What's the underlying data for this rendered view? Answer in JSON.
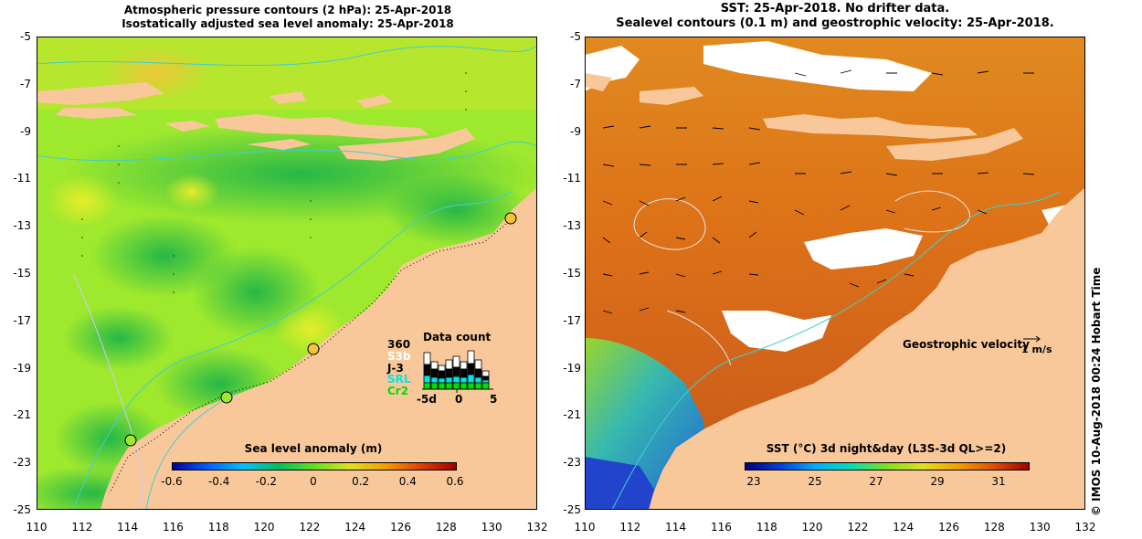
{
  "left_panel": {
    "title_line1": "Atmospheric pressure contours (2 hPa): 25-Apr-2018",
    "title_line2": "Isostatically adjusted sea level anomaly: 25-Apr-2018",
    "colorbar": {
      "title": "Sea level anomaly (m)",
      "ticks": [
        "-0.6",
        "-0.4",
        "-0.2",
        "0",
        "0.2",
        "0.4",
        "0.6"
      ]
    },
    "data_count": {
      "title": "Data count",
      "top_value": "360",
      "satellites": [
        "S3b",
        "J-3",
        "SRL",
        "Cr2"
      ],
      "axis_labels": [
        "-5d",
        "0",
        "5"
      ],
      "satellite_colors": [
        "#ffffff",
        "#000000",
        "#00e5e5",
        "#00dd00"
      ]
    }
  },
  "right_panel": {
    "title_line1": "SST: 25-Apr-2018. No drifter data.",
    "title_line2": "Sealevel contours (0.1 m) and geostrophic velocity: 25-Apr-2018.",
    "velocity_legend": "Geostrophic velocity",
    "velocity_unit": "1 m/s",
    "colorbar": {
      "title": "SST (°C) 3d night&day (L3S-3d QL>=2)",
      "ticks": [
        "23",
        "25",
        "27",
        "29",
        "31"
      ]
    }
  },
  "y_axis_labels": [
    "-5",
    "-7",
    "-9",
    "-11",
    "-13",
    "-15",
    "-17",
    "-19",
    "-21",
    "-23",
    "-25"
  ],
  "x_axis_labels": [
    "110",
    "112",
    "114",
    "116",
    "118",
    "120",
    "122",
    "124",
    "126",
    "128",
    "130",
    "132"
  ],
  "credit": "© IMOS 10-Aug-2018 00:24 Hobart Time",
  "colors": {
    "land": "#f9c89a",
    "sla_base": "#9ee82e",
    "sst_base": "#e07a1a",
    "ocean_deep": "#2244cc"
  }
}
